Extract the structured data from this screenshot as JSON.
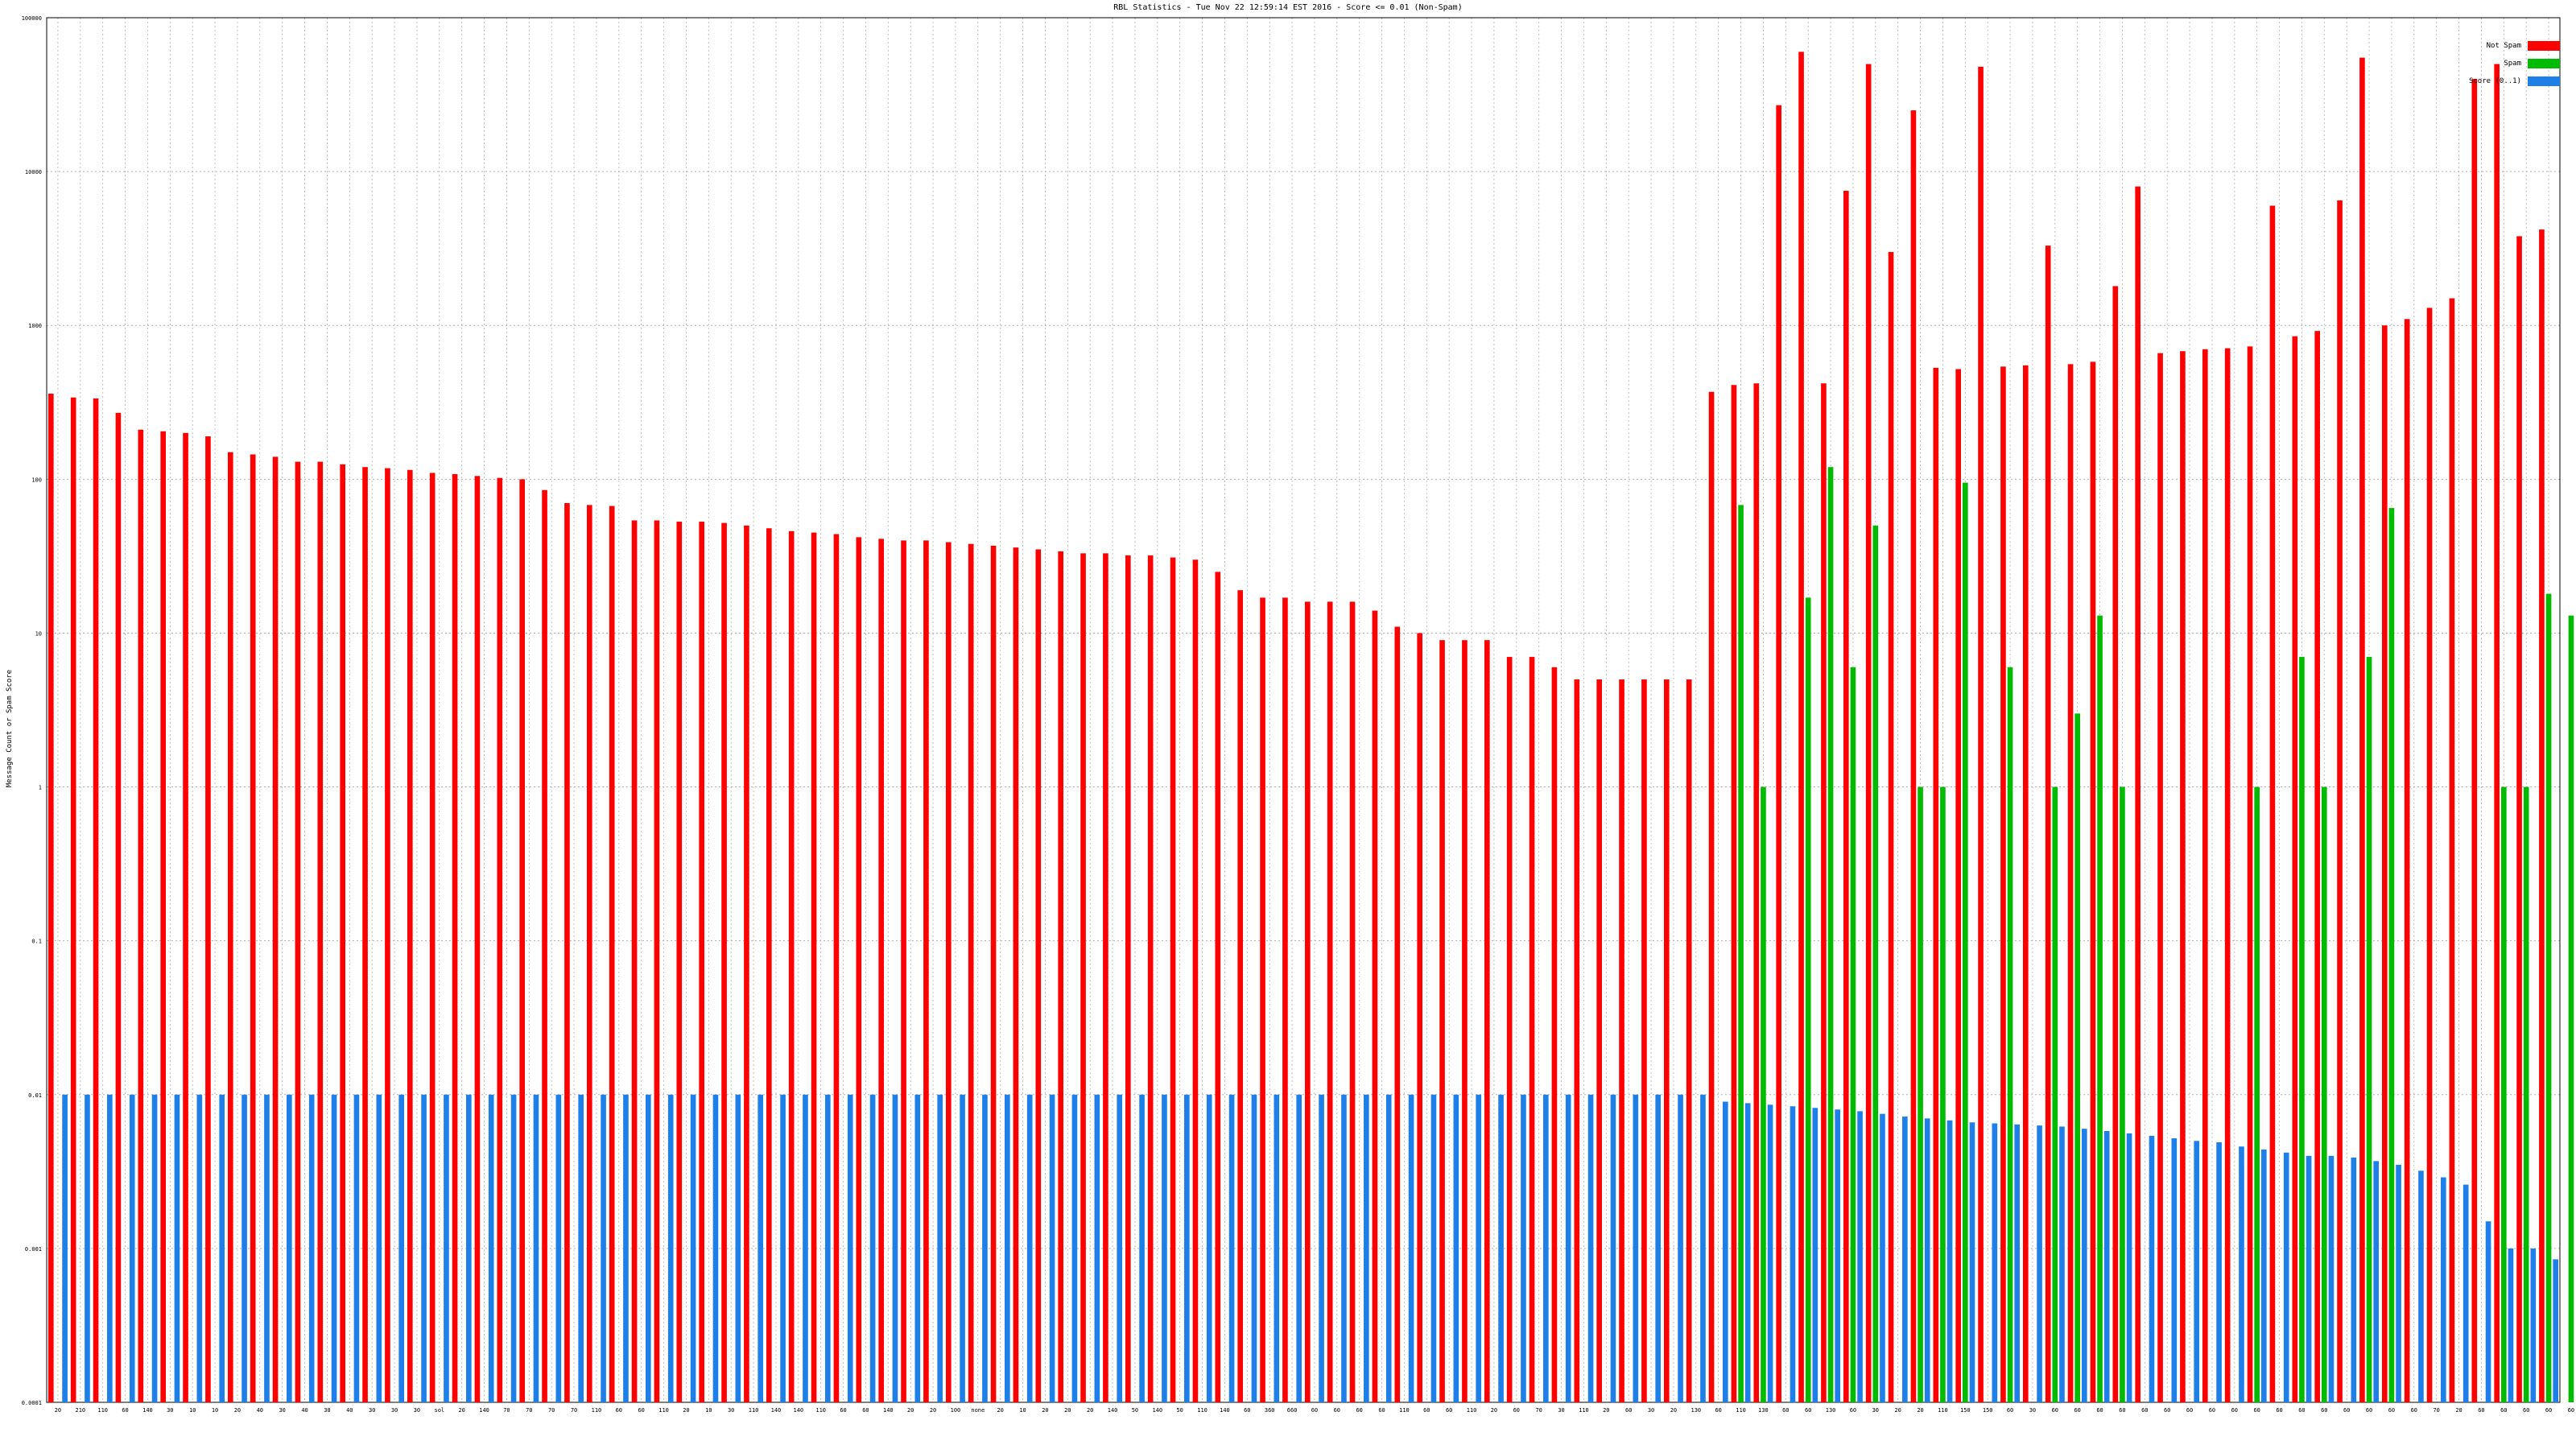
{
  "title": "RBL Statistics - Tue Nov 22 12:59:14 EST 2016 - Score <= 0.01 (Non-Spam)",
  "chart_data": {
    "type": "bar",
    "title": "RBL Statistics - Tue Nov 22 12:59:14 EST 2016 - Score <= 0.01 (Non-Spam)",
    "xlabel": "",
    "ylabel": "Message Count or Spam Score",
    "y_scale": "log",
    "ylim": [
      0.0001,
      100000
    ],
    "y_ticks": [
      "0.0001",
      "0.001",
      "0.01",
      "0.1",
      "1",
      "10",
      "100",
      "1000",
      "10000",
      "100000"
    ],
    "grid": true,
    "legend_placement": "top-right",
    "series": [
      {
        "name": "Not Spam",
        "color": "#ff0000",
        "values": [
          360,
          340,
          335,
          270,
          210,
          205,
          200,
          190,
          150,
          145,
          140,
          130,
          130,
          125,
          120,
          118,
          115,
          110,
          108,
          105,
          102,
          100,
          85,
          70,
          68,
          67,
          54,
          54,
          53,
          53,
          52,
          50,
          48,
          46,
          45,
          44,
          42,
          41,
          40,
          40,
          39,
          38,
          37,
          36,
          35,
          34,
          33,
          33,
          32,
          32,
          31,
          30,
          25,
          19,
          17,
          17,
          16,
          16,
          16,
          14,
          11,
          10,
          9,
          9,
          9,
          7,
          7,
          6,
          5,
          5,
          5,
          5,
          5,
          5,
          370,
          410,
          420,
          27000,
          60000,
          420,
          7500,
          50000,
          3000,
          25000,
          530,
          520,
          48000,
          540,
          550,
          3300,
          560,
          580,
          1800,
          8000,
          660,
          680,
          700,
          710,
          730,
          6000,
          850,
          920,
          6500,
          55000,
          1000,
          1100,
          1300,
          1500,
          40000,
          50000,
          3800,
          4200
        ]
      },
      {
        "name": "Spam",
        "color": "#00bb00",
        "values": [
          0,
          0,
          0,
          0,
          0,
          0,
          0,
          0,
          0,
          0,
          0,
          0,
          0,
          0,
          0,
          0,
          0,
          0,
          0,
          0,
          0,
          0,
          0,
          0,
          0,
          0,
          0,
          0,
          0,
          0,
          0,
          0,
          0,
          0,
          0,
          0,
          0,
          0,
          0,
          0,
          0,
          0,
          0,
          0,
          0,
          0,
          0,
          0,
          0,
          0,
          0,
          0,
          0,
          0,
          0,
          0,
          0,
          0,
          0,
          0,
          0,
          0,
          0,
          0,
          0,
          0,
          0,
          0,
          0,
          0,
          0,
          0,
          0,
          0,
          0,
          68,
          1,
          0,
          17,
          120,
          6,
          50,
          0,
          1,
          1,
          95,
          0,
          6,
          0,
          1,
          3,
          13,
          1,
          0,
          0,
          0,
          0,
          0,
          1,
          0,
          7,
          1,
          0,
          7,
          65,
          0,
          0,
          0,
          0,
          1,
          1,
          18,
          13,
          0,
          1
        ]
      },
      {
        "name": "Score (0..1)",
        "color": "#1e7fe8",
        "values": [
          0.01,
          0.01,
          0.01,
          0.01,
          0.01,
          0.01,
          0.01,
          0.01,
          0.01,
          0.01,
          0.01,
          0.01,
          0.01,
          0.01,
          0.01,
          0.01,
          0.01,
          0.01,
          0.01,
          0.01,
          0.01,
          0.01,
          0.01,
          0.01,
          0.01,
          0.01,
          0.01,
          0.01,
          0.01,
          0.01,
          0.01,
          0.01,
          0.01,
          0.01,
          0.01,
          0.01,
          0.01,
          0.01,
          0.01,
          0.01,
          0.01,
          0.01,
          0.01,
          0.01,
          0.01,
          0.01,
          0.01,
          0.01,
          0.01,
          0.01,
          0.01,
          0.01,
          0.01,
          0.01,
          0.01,
          0.01,
          0.01,
          0.01,
          0.01,
          0.01,
          0.01,
          0.01,
          0.01,
          0.01,
          0.01,
          0.01,
          0.01,
          0.01,
          0.01,
          0.01,
          0.01,
          0.01,
          0.01,
          0.01,
          0.009,
          0.0088,
          0.0086,
          0.0084,
          0.0082,
          0.008,
          0.0078,
          0.0075,
          0.0072,
          0.007,
          0.0068,
          0.0066,
          0.0065,
          0.0064,
          0.0063,
          0.0062,
          0.006,
          0.0058,
          0.0056,
          0.0054,
          0.0052,
          0.005,
          0.0049,
          0.0046,
          0.0044,
          0.0042,
          0.004,
          0.004,
          0.0039,
          0.0037,
          0.0035,
          0.0032,
          0.0029,
          0.0026,
          0.0015,
          0.001,
          0.001,
          0.00085
        ]
      }
    ],
    "categories_top": [
      "20",
      "210",
      "110",
      "60",
      "140",
      "30",
      "10",
      "10",
      "20",
      "40",
      "30",
      "40",
      "30",
      "40",
      "30",
      "30",
      "30",
      "sol",
      "20",
      "140",
      "70",
      "70",
      "70",
      "70",
      "110",
      "60",
      "60",
      "110",
      "20",
      "10",
      "30",
      "110",
      "140",
      "140",
      "110",
      "60",
      "60",
      "140",
      "20",
      "20",
      "100",
      "none",
      "20",
      "10",
      "20",
      "20",
      "20",
      "140",
      "50",
      "140",
      "50",
      "110",
      "140",
      "60",
      "360",
      "660",
      "60",
      "60",
      "60",
      "60",
      "110",
      "60",
      "60",
      "110",
      "20",
      "60",
      "70",
      "30",
      "110",
      "20",
      "60",
      "30",
      "20",
      "130",
      "60",
      "110",
      "130",
      "60",
      "60",
      "130",
      "60",
      "30",
      "20",
      "20",
      "110",
      "150",
      "150",
      "60",
      "30",
      "60",
      "60",
      "60",
      "60",
      "60",
      "60",
      "60",
      "60",
      "60",
      "60",
      "60",
      "60",
      "60",
      "60",
      "60",
      "60",
      "60",
      "70",
      "20",
      "60",
      "60",
      "60",
      "60",
      "60",
      "60",
      "60"
    ],
    "legend": [
      "Not Spam",
      "Spam",
      "Score (0..1)"
    ]
  },
  "colors": {
    "not_spam": "#ff0000",
    "spam": "#00bb00",
    "score": "#1e7fe8",
    "grid": "#b0b0b0",
    "axis": "#000000"
  }
}
